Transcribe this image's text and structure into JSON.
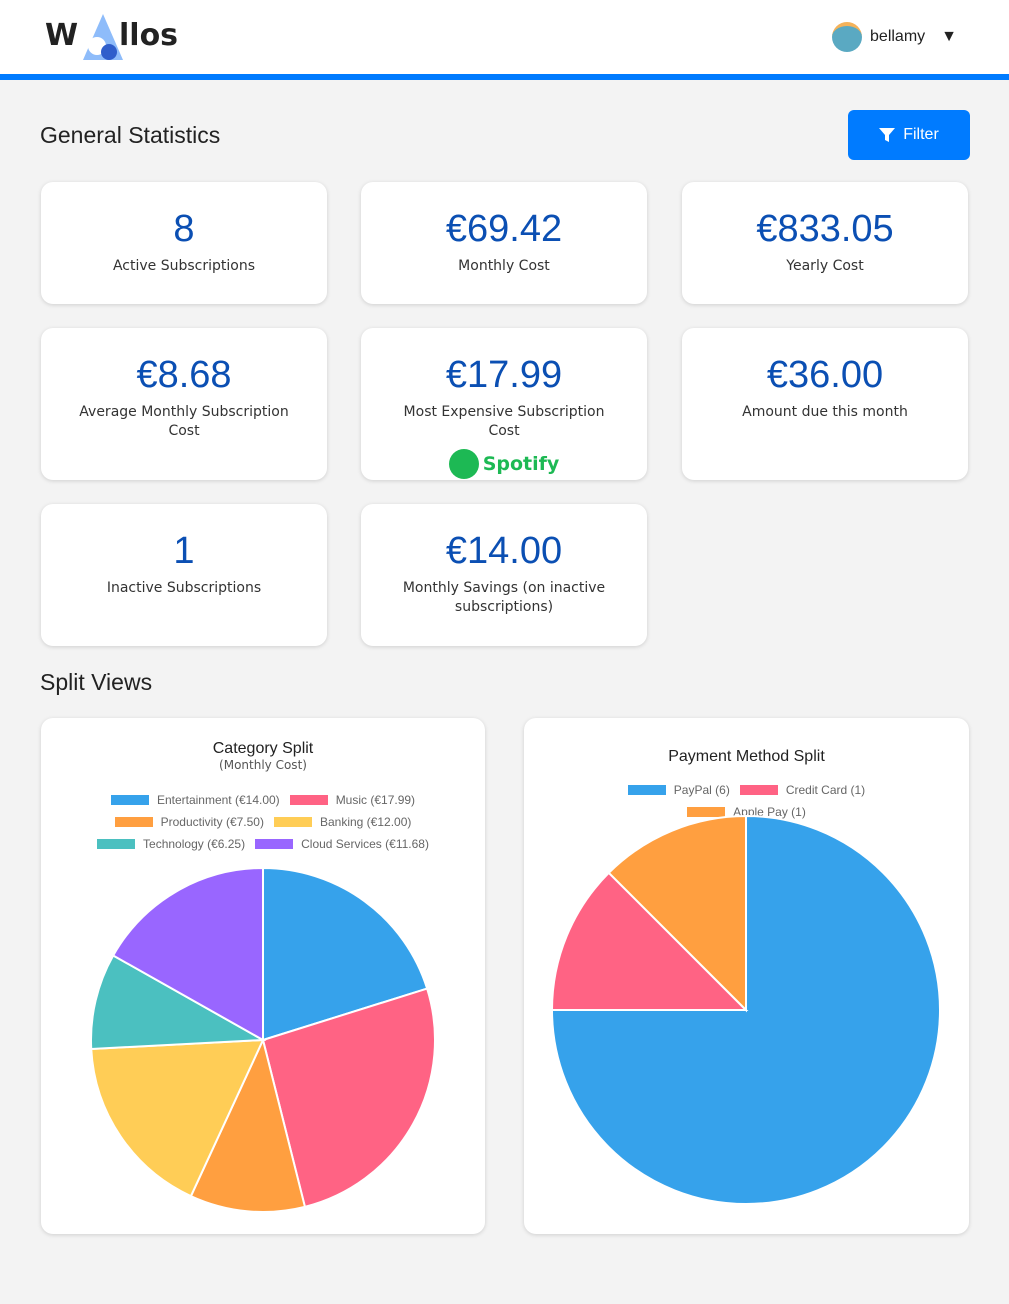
{
  "header": {
    "logo": "Wallos",
    "user": "bellamy",
    "dropdown": "▼"
  },
  "general": {
    "title": "General Statistics",
    "filter": "Filter"
  },
  "stats": [
    {
      "value": "8",
      "label": "Active Subscriptions"
    },
    {
      "value": "€69.42",
      "label": "Monthly Cost"
    },
    {
      "value": "€833.05",
      "label": "Yearly Cost"
    },
    {
      "value": "€8.68",
      "label": "Average Monthly Subscription Cost"
    },
    {
      "value": "€17.99",
      "label": "Most Expensive Subscription Cost",
      "brand": "Spotify"
    },
    {
      "value": "€36.00",
      "label": "Amount due this month"
    },
    {
      "value": "1",
      "label": "Inactive Subscriptions"
    },
    {
      "value": "€14.00",
      "label": "Monthly Savings (on inactive subscriptions)"
    }
  ],
  "split": {
    "title": "Split Views"
  },
  "chart_data": [
    {
      "type": "pie",
      "title": "Category Split",
      "subtitle": "(Monthly Cost)",
      "categories": [
        "Entertainment (€14.00)",
        "Music (€17.99)",
        "Productivity (€7.50)",
        "Banking (€12.00)",
        "Technology (€6.25)",
        "Cloud Services (€11.68)"
      ],
      "values": [
        14.0,
        17.99,
        7.5,
        12.0,
        6.25,
        11.68
      ],
      "colors": [
        "#36a2eb",
        "#ff6384",
        "#ff9f40",
        "#ffcd56",
        "#4bc0c0",
        "#9966ff"
      ],
      "legend": "top"
    },
    {
      "type": "pie",
      "title": "Payment Method Split",
      "categories": [
        "PayPal (6)",
        "Credit Card (1)",
        "Apple Pay (1)"
      ],
      "values": [
        6,
        1,
        1
      ],
      "colors": [
        "#36a2eb",
        "#ff6384",
        "#ff9f40"
      ],
      "legend": "top"
    }
  ]
}
